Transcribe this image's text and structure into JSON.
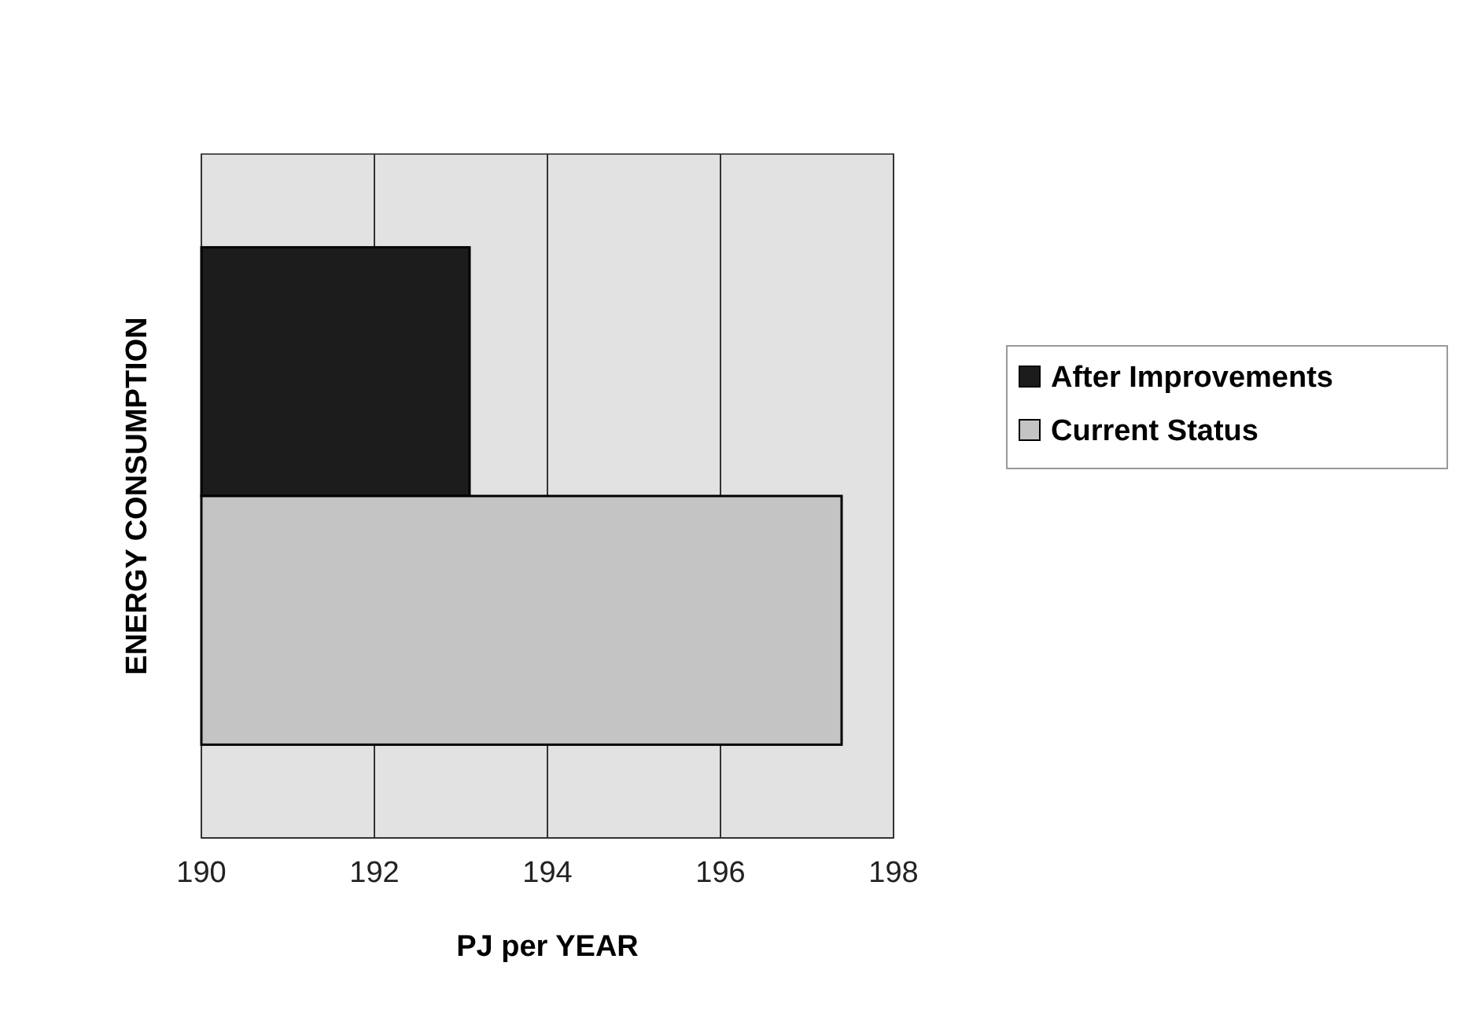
{
  "chart_data": {
    "type": "bar",
    "orientation": "horizontal",
    "xlabel": "PJ per YEAR",
    "ylabel": "ENERGY CONSUMPTION",
    "categories": [
      null
    ],
    "series": [
      {
        "name": "After Improvements",
        "color": "#1c1c1c",
        "values": [
          193.1
        ]
      },
      {
        "name": "Current Status",
        "color": "#c4c4c4",
        "values": [
          197.4
        ]
      }
    ],
    "xlim": [
      190,
      198
    ],
    "xticks": [
      190,
      192,
      194,
      196,
      198
    ],
    "grid": "x",
    "legend": "right"
  }
}
